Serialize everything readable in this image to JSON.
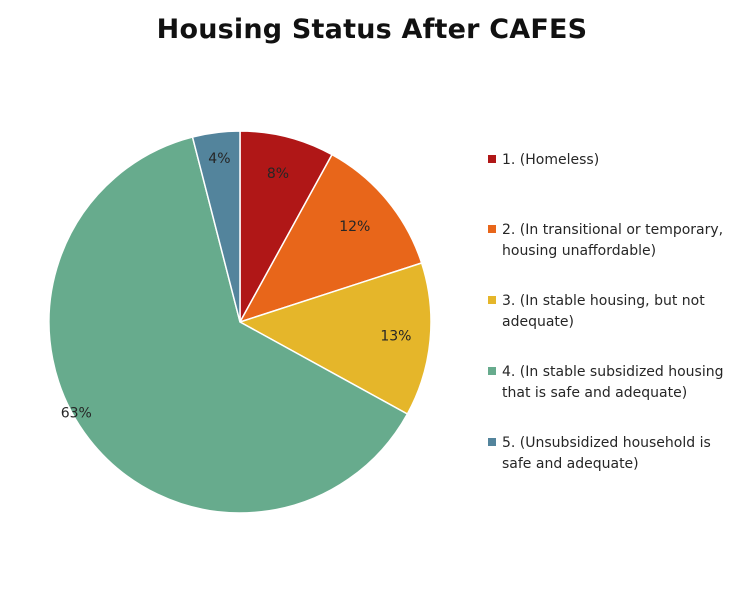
{
  "chart_data": {
    "type": "pie",
    "title": "Housing Status After CAFES",
    "categories": [
      "1. (Homeless)",
      "2. (In transitional or temporary, housing unaffordable)",
      "3. (In stable housing, but not adequate)",
      "4. (In stable subsidized housing that is safe and adequate)",
      "5. (Unsubsidized household is safe and adequate)"
    ],
    "values": [
      8,
      12,
      13,
      63,
      4
    ],
    "labels": [
      "8%",
      "12%",
      "13%",
      "63%",
      "4%"
    ],
    "colors": [
      "#B01717",
      "#E8661A",
      "#E5B62A",
      "#67AB8D",
      "#53849C"
    ],
    "legend_position": "right"
  }
}
